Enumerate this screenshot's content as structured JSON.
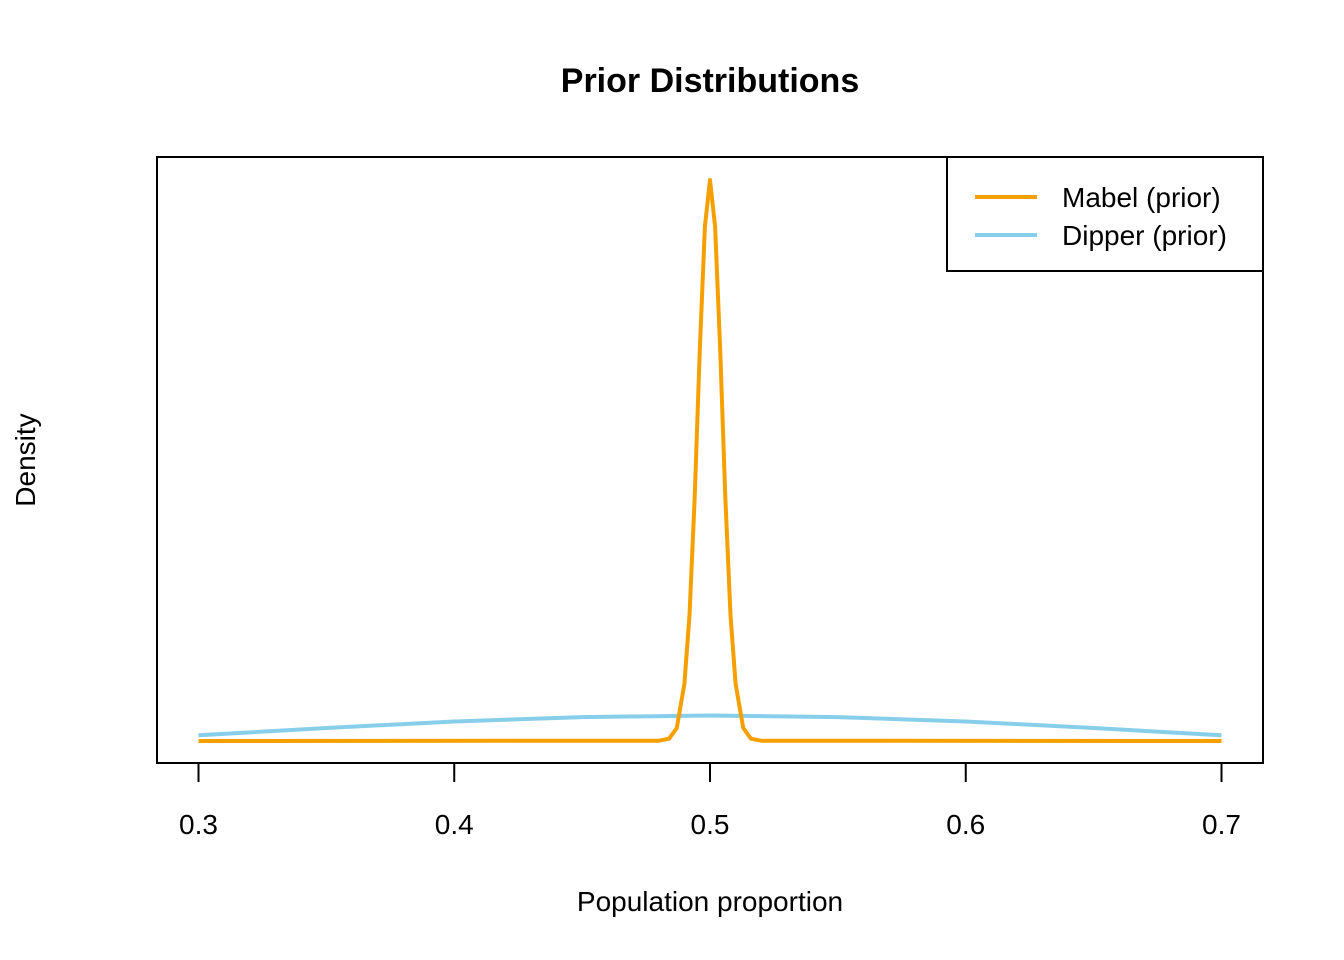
{
  "chart_data": {
    "type": "line",
    "title": "Prior Distributions",
    "xlabel": "Population proportion",
    "ylabel": "Density",
    "xlim": [
      0.3,
      0.7
    ],
    "x_ticks": [
      "0.3",
      "0.4",
      "0.5",
      "0.6",
      "0.7"
    ],
    "y_axis_shown": false,
    "grid": false,
    "legend_position": "top-right",
    "series": [
      {
        "name": "Mabel (prior)",
        "color": "#f5a000",
        "x": [
          0.3,
          0.48,
          0.484,
          0.487,
          0.49,
          0.492,
          0.494,
          0.496,
          0.498,
          0.5,
          0.502,
          0.504,
          0.506,
          0.508,
          0.51,
          0.513,
          0.516,
          0.52,
          0.7
        ],
        "y": [
          0.0,
          0.02,
          0.18,
          1.04,
          4.55,
          10.0,
          19.4,
          31.1,
          40.9,
          44.6,
          40.9,
          31.1,
          19.4,
          10.0,
          4.55,
          1.04,
          0.18,
          0.02,
          0.0
        ]
      },
      {
        "name": "Dipper (prior)",
        "color": "#87ceeb",
        "x": [
          0.3,
          0.35,
          0.4,
          0.45,
          0.5,
          0.55,
          0.6,
          0.65,
          0.7
        ],
        "y": [
          0.45,
          1.03,
          1.55,
          1.9,
          2.03,
          1.9,
          1.55,
          1.03,
          0.45
        ]
      }
    ]
  }
}
